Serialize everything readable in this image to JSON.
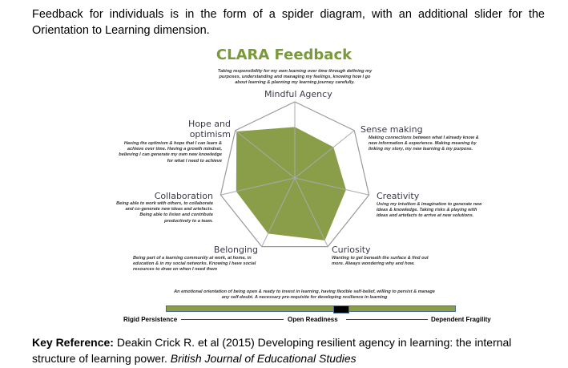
{
  "intro": "Feedback for individuals is in the form of a spider diagram, with an additional slider for the Orientation to Learning dimension.",
  "chart_data": {
    "type": "radar",
    "title": "CLARA Feedback",
    "axes": [
      {
        "name": "Mindful Agency",
        "description": "Taking responsibility for my own learning over time through defining my purposes, understanding and managing my feelings, knowing how I go about learning & planning my learning journey carefully.",
        "value": 0.67
      },
      {
        "name": "Sense making",
        "description": "Making connections between what I already know & new information & experience. Making meaning by linking my story, my new learning & my purpose.",
        "value": 0.65
      },
      {
        "name": "Creativity",
        "description": "Using my intuition & imagination to generate new ideas & knowledge. Taking risks & playing with ideas and artefacts to arrive at new solutions.",
        "value": 0.69
      },
      {
        "name": "Curiosity",
        "description": "Wanting to get beneath the surface & find out more. Always wondering why and how.",
        "value": 0.91
      },
      {
        "name": "Belonging",
        "description": "Being part of a learning community at work, at home, in education & in my social networks. Knowing I have social resources to draw on when I need them",
        "value": 0.81
      },
      {
        "name": "Collaboration",
        "description": "Being able to work with others, to collaborate and co-generate new ideas and artefacts. Being able to listen and contribute productively to a team.",
        "value": 0.79
      },
      {
        "name": "Hope and optimism",
        "description": "Having the optimism & hope that I can learn & achieve over time. Having a growth mindset, believing I can generate my own new knowledge for what I need to achieve",
        "value": 0.98
      }
    ],
    "range": [
      0,
      1
    ],
    "fill_color": "#8a9e4a"
  },
  "slider": {
    "description": "An emotional orientation of being open & ready to invest in learning, having flexible self-belief, willing to persist & manage any self-doubt. A necessary pre-requisite for developing resilience in learning",
    "left_label": "Rigid Persistence",
    "middle_label": "Open Readiness",
    "right_label": "Dependent Fragility",
    "value": 0.6,
    "bar_color": "#8a9e4a",
    "marker_color": "#000000"
  },
  "key": {
    "label": "Key Reference:",
    "text": " Deakin Crick R. et al (2015) Developing resilient agency in learning: the internal structure of learning power. ",
    "journal": "British Journal of Educational Studies"
  }
}
